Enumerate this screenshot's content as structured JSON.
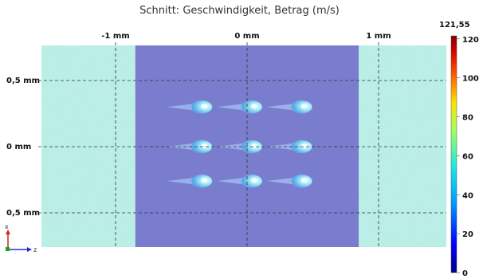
{
  "title": "Schnitt: Geschwindigkeit, Betrag (m/s)",
  "chart_data": {
    "type": "heatmap",
    "title": "Schnitt: Geschwindigkeit, Betrag (m/s)",
    "quantity": "Geschwindigkeit, Betrag",
    "unit": "m/s",
    "x_axis": {
      "position": "top",
      "ticks": [
        {
          "value": -1,
          "label": "-1 mm"
        },
        {
          "value": 0,
          "label": "0 mm"
        },
        {
          "value": 1,
          "label": "1 mm"
        }
      ]
    },
    "y_axis": {
      "position": "left",
      "ticks": [
        {
          "value": 0.5,
          "label": "0,5 mm"
        },
        {
          "value": 0,
          "label": "0 mm"
        },
        {
          "value": -0.5,
          "label": "0,5 mm"
        }
      ]
    },
    "grid": true,
    "colorbar": {
      "position": "right",
      "min": 0,
      "max": 121.55,
      "max_label": "121,55",
      "ticks": [
        0,
        20,
        40,
        60,
        80,
        100,
        120
      ],
      "colormap": [
        "#00008f",
        "#0000ff",
        "#00a0ff",
        "#20e8e0",
        "#a0ff60",
        "#ffe000",
        "#ff6000",
        "#e00000",
        "#800000"
      ]
    },
    "regions": [
      {
        "name": "left channel",
        "x_range": [
          -1.6,
          -0.85
        ],
        "value_range": [
          55,
          70
        ],
        "color": "#b8eee2"
      },
      {
        "name": "center cavity",
        "x_range": [
          -0.85,
          0.85
        ],
        "value_range": [
          5,
          15
        ],
        "color": "#7a7dcd"
      },
      {
        "name": "right channel",
        "x_range": [
          0.85,
          1.6
        ],
        "value_range": [
          55,
          70
        ],
        "color": "#b8eee2"
      }
    ],
    "features": [
      {
        "name": "jet",
        "x": -0.38,
        "y": 0.3
      },
      {
        "name": "jet",
        "x": 0.0,
        "y": 0.3
      },
      {
        "name": "jet",
        "x": 0.38,
        "y": 0.3
      },
      {
        "name": "jet",
        "x": -0.38,
        "y": 0.0
      },
      {
        "name": "jet",
        "x": 0.0,
        "y": 0.0
      },
      {
        "name": "jet",
        "x": 0.38,
        "y": 0.0
      },
      {
        "name": "jet",
        "x": -0.38,
        "y": -0.26
      },
      {
        "name": "jet",
        "x": 0.0,
        "y": -0.26
      },
      {
        "name": "jet",
        "x": 0.38,
        "y": -0.26
      }
    ],
    "triad": {
      "vertical": "x",
      "horizontal": "z"
    }
  }
}
